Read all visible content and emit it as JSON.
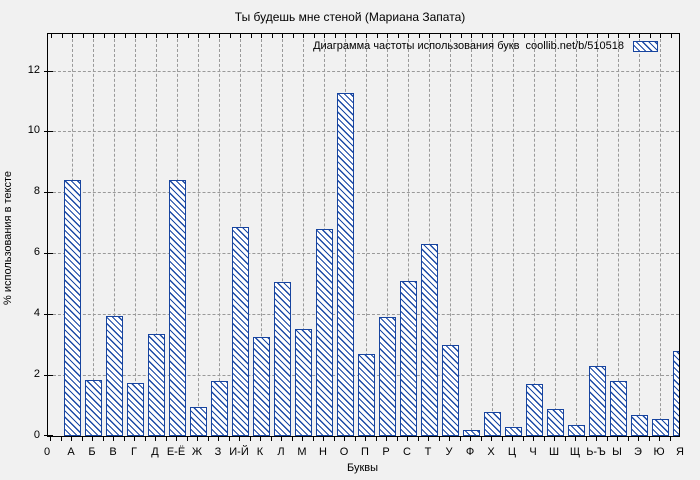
{
  "page": {
    "title": "Ты будешь мне стеной (Мариана Запата)"
  },
  "chart_data": {
    "type": "bar",
    "title": "Ты будешь мне стеной (Мариана Запата)",
    "legend": "Диаграмма частоты использования букв  coollib.net/b/510518",
    "xlabel": "Буквы",
    "ylabel": "% использования в тексте",
    "origin_label": "0",
    "categories": [
      "А",
      "Б",
      "В",
      "Г",
      "Д",
      "Е-Ё",
      "Ж",
      "З",
      "И-Й",
      "К",
      "Л",
      "М",
      "Н",
      "О",
      "П",
      "Р",
      "С",
      "Т",
      "У",
      "Ф",
      "Х",
      "Ц",
      "Ч",
      "Ш",
      "Щ",
      "Ь-Ъ",
      "Ы",
      "Э",
      "Ю",
      "Я"
    ],
    "values": [
      8.4,
      1.85,
      3.95,
      1.75,
      3.35,
      8.4,
      0.95,
      1.8,
      6.85,
      3.25,
      5.05,
      3.5,
      6.8,
      11.25,
      2.7,
      3.9,
      5.1,
      6.3,
      3.0,
      0.2,
      0.8,
      0.3,
      1.7,
      0.9,
      0.35,
      2.3,
      1.8,
      0.7,
      0.55,
      2.8
    ],
    "y_ticks": [
      0,
      2,
      4,
      6,
      8,
      10,
      12
    ],
    "ylim": [
      0,
      13.2
    ],
    "grid": true,
    "legend_position": "top-right-inside",
    "colors": {
      "bar_line": "#17449f",
      "bar_fill": "#ffffff",
      "background": "#f1f1f1",
      "grid": "#9a9a9a",
      "text": "#000000"
    }
  }
}
